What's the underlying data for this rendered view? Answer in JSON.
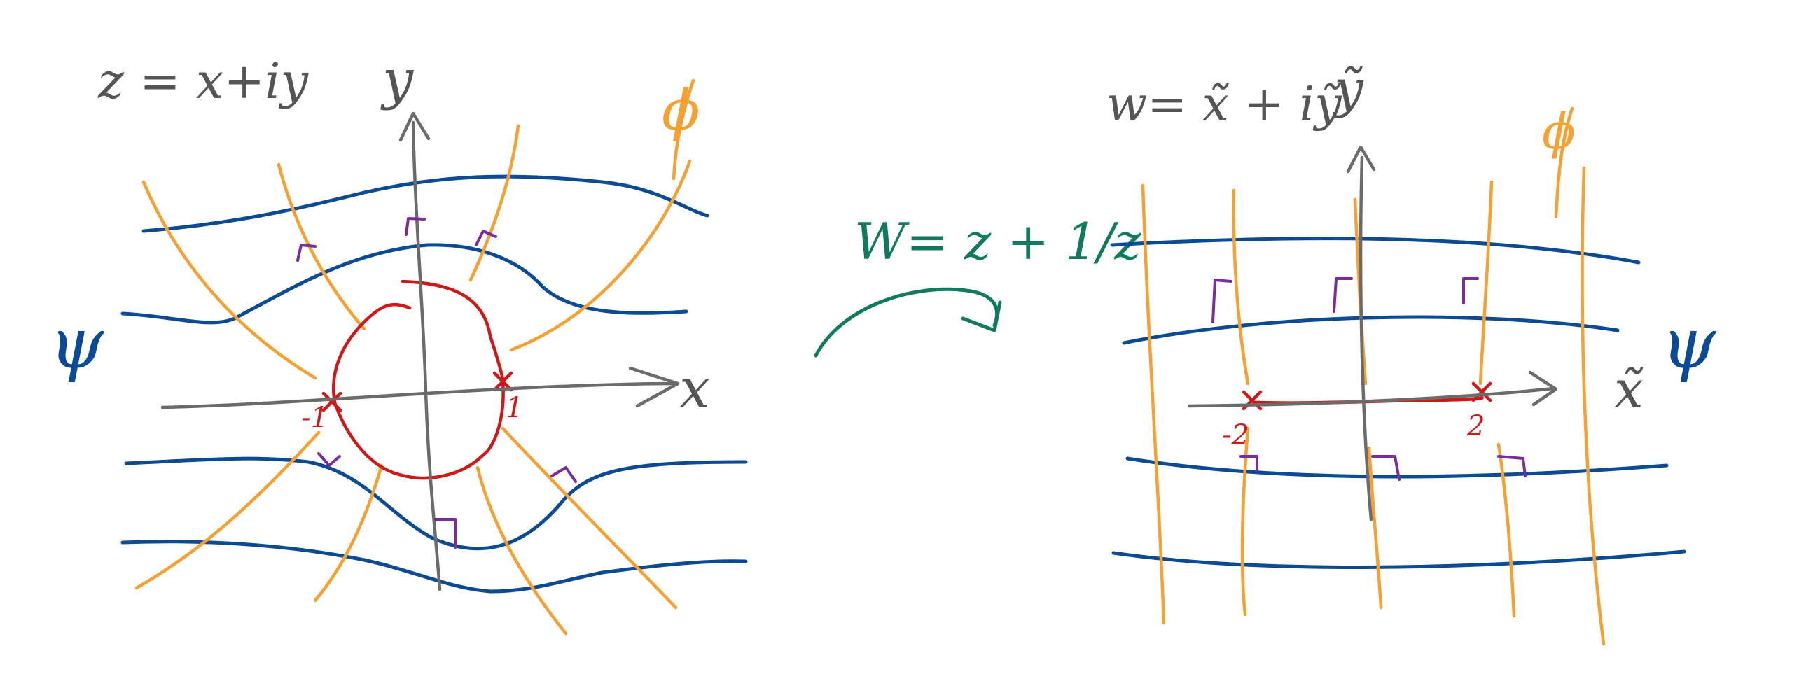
{
  "colors": {
    "background": "#ffffff",
    "axis": "#6b6b6b",
    "psi": "#0b4a94",
    "phi": "#f5a030",
    "boundary": "#d01818",
    "right_angle": "#7a2c9a",
    "map": "#0f7a5e",
    "label_gray": "#555555"
  },
  "left_plane": {
    "title": "z = x+iy",
    "x_axis": "x",
    "y_axis": "y",
    "psi_label": "ψ",
    "phi_label": "ϕ",
    "mark_neg": "-1",
    "mark_pos": "1"
  },
  "mapping": {
    "formula": "W= z + 1/z"
  },
  "right_plane": {
    "title": "w= x̃ + iỹ",
    "x_axis": "x̃",
    "y_axis": "ỹ",
    "psi_label": "ψ",
    "phi_label": "ϕ",
    "mark_neg": "-2",
    "mark_pos": "2"
  }
}
